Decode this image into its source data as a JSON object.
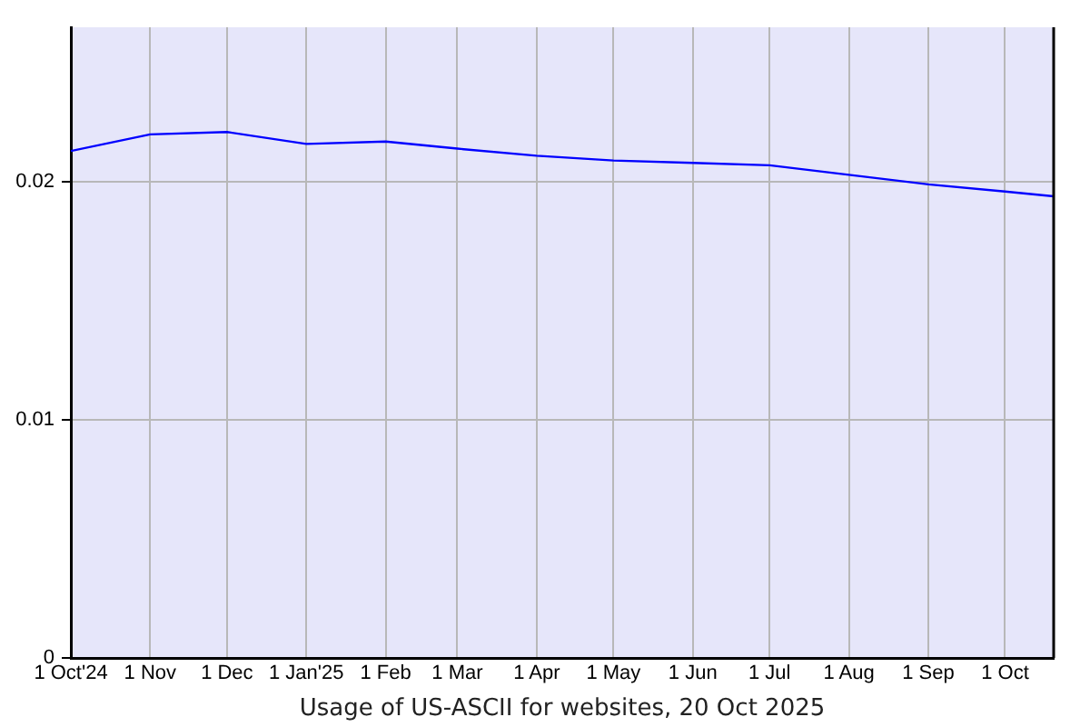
{
  "chart_data": {
    "type": "line",
    "xlabel": "Usage of US-ASCII for websites, 20 Oct 2025",
    "x": [
      "2024-10-01",
      "2024-11-01",
      "2024-12-01",
      "2025-01-01",
      "2025-02-01",
      "2025-03-01",
      "2025-04-01",
      "2025-05-01",
      "2025-06-01",
      "2025-07-01",
      "2025-08-01",
      "2025-09-01",
      "2025-10-01",
      "2025-10-20"
    ],
    "values": [
      0.0213,
      0.022,
      0.0221,
      0.0216,
      0.0217,
      0.0214,
      0.0211,
      0.0209,
      0.0208,
      0.0207,
      0.0203,
      0.0199,
      0.0196,
      0.0194
    ],
    "color": "#0000ff",
    "xlim": [
      "2024-10-01",
      "2025-10-20"
    ],
    "xticks": [
      {
        "value": "2024-10-01",
        "label": "1 Oct'24"
      },
      {
        "value": "2024-11-01",
        "label": "1 Nov"
      },
      {
        "value": "2024-12-01",
        "label": "1 Dec"
      },
      {
        "value": "2025-01-01",
        "label": "1 Jan'25"
      },
      {
        "value": "2025-02-01",
        "label": "1 Feb"
      },
      {
        "value": "2025-03-01",
        "label": "1 Mar"
      },
      {
        "value": "2025-04-01",
        "label": "1 Apr"
      },
      {
        "value": "2025-05-01",
        "label": "1 May"
      },
      {
        "value": "2025-06-01",
        "label": "1 Jun"
      },
      {
        "value": "2025-07-01",
        "label": "1 Jul"
      },
      {
        "value": "2025-08-01",
        "label": "1 Aug"
      },
      {
        "value": "2025-09-01",
        "label": "1 Sep"
      },
      {
        "value": "2025-10-01",
        "label": "1 Oct"
      }
    ],
    "ylim": [
      0,
      0.0265
    ],
    "yticks": [
      0,
      0.01,
      0.02
    ],
    "grid": true,
    "marker": "none"
  }
}
